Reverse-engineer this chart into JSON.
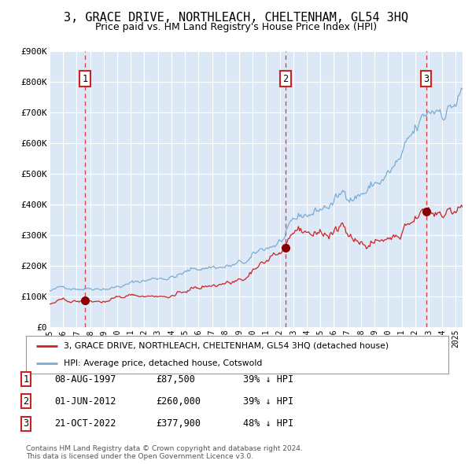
{
  "title": "3, GRACE DRIVE, NORTHLEACH, CHELTENHAM, GL54 3HQ",
  "subtitle": "Price paid vs. HM Land Registry's House Price Index (HPI)",
  "title_fontsize": 11,
  "subtitle_fontsize": 9,
  "bg_color": "#dce8f5",
  "red_line_color": "#cc2222",
  "blue_line_color": "#7aadd4",
  "sale_marker_color": "#880000",
  "vline_color": "#dd4444",
  "ylim": [
    0,
    900000
  ],
  "yticks": [
    0,
    100000,
    200000,
    300000,
    400000,
    500000,
    600000,
    700000,
    800000,
    900000
  ],
  "sales": [
    {
      "label": "1",
      "date_num": 1997.6,
      "price": 87500
    },
    {
      "label": "2",
      "date_num": 2012.42,
      "price": 260000
    },
    {
      "label": "3",
      "date_num": 2022.8,
      "price": 377900
    }
  ],
  "sale_labels": [
    {
      "num": "1",
      "date": "08-AUG-1997",
      "price": "£87,500",
      "pct": "39% ↓ HPI"
    },
    {
      "num": "2",
      "date": "01-JUN-2012",
      "price": "£260,000",
      "pct": "39% ↓ HPI"
    },
    {
      "num": "3",
      "date": "21-OCT-2022",
      "price": "£377,900",
      "pct": "48% ↓ HPI"
    }
  ],
  "legend_line1": "3, GRACE DRIVE, NORTHLEACH, CHELTENHAM, GL54 3HQ (detached house)",
  "legend_line2": "HPI: Average price, detached house, Cotswold",
  "footnote": "Contains HM Land Registry data © Crown copyright and database right 2024.\nThis data is licensed under the Open Government Licence v3.0.",
  "xmin": 1995.0,
  "xmax": 2025.5
}
